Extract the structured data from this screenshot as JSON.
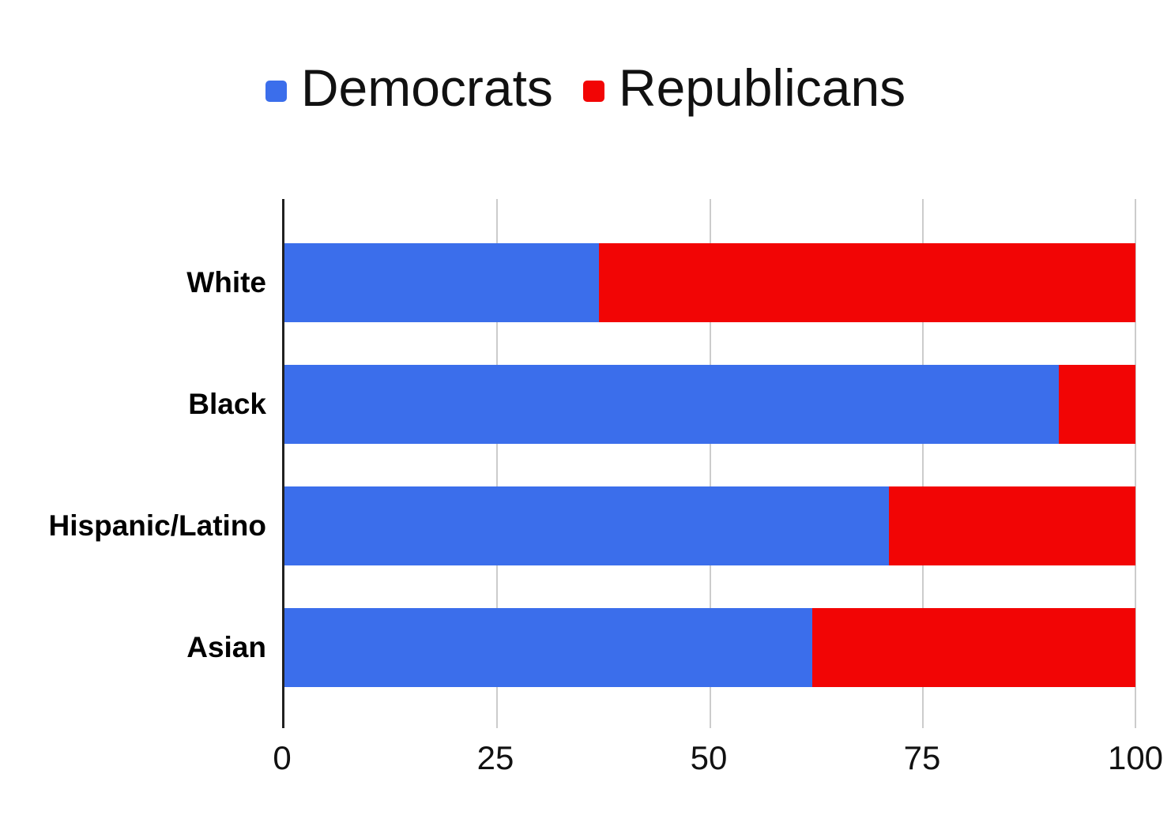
{
  "chart_data": {
    "type": "bar",
    "orientation": "horizontal",
    "stacked": true,
    "title": "",
    "categories": [
      "White",
      "Black",
      "Hispanic/Latino",
      "Asian"
    ],
    "series": [
      {
        "name": "Democrats",
        "color": "#3b6eeb",
        "values": [
          37,
          91,
          71,
          62
        ]
      },
      {
        "name": "Republicans",
        "color": "#f20505",
        "values": [
          63,
          9,
          29,
          38
        ]
      }
    ],
    "x_axis": {
      "min": 0,
      "max": 100,
      "ticks": [
        0,
        25,
        50,
        75,
        100
      ]
    },
    "grid": true,
    "legend_position": "top"
  },
  "colors": {
    "axis_line": "#212121",
    "gridline": "#cccccc",
    "background": "#ffffff",
    "label_text": "#000000"
  }
}
